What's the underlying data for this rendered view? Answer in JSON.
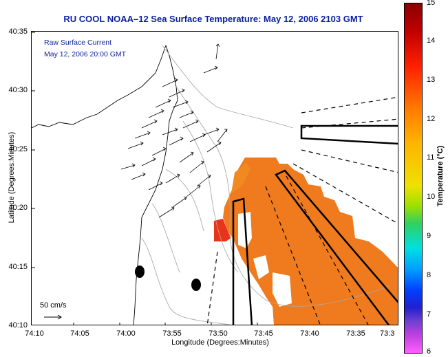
{
  "title": "RU COOL  NOAA–12  Sea Surface Temperature:  May 12, 2006 2103 GMT",
  "info": {
    "line1": "Raw Surface Current",
    "line2": "May 12, 2006 20:00 GMT",
    "scale_label": "50 cm/s"
  },
  "axes": {
    "xlabel": "Longitude (Degrees:Minutes)",
    "ylabel": "Latitude (Degrees:Minutes)",
    "xticks": [
      "74:10",
      "74:05",
      "74:00",
      "73:55",
      "73:50",
      "73:45",
      "73:40",
      "73:35",
      "73:3"
    ],
    "yticks": [
      "40:35",
      "40:30",
      "40:25",
      "40:20",
      "40:15",
      "40:10"
    ]
  },
  "colorbar": {
    "title": "Temperature (°C)",
    "ticks": [
      "15",
      "14",
      "13",
      "12",
      "11",
      "10",
      "9",
      "8",
      "7",
      "6"
    ]
  },
  "colors": {
    "sst_orange": "#f07a1e",
    "sst_red": "#e8341a",
    "title_blue": "#0a1ea0",
    "contour_gray": "#aaaaaa"
  }
}
